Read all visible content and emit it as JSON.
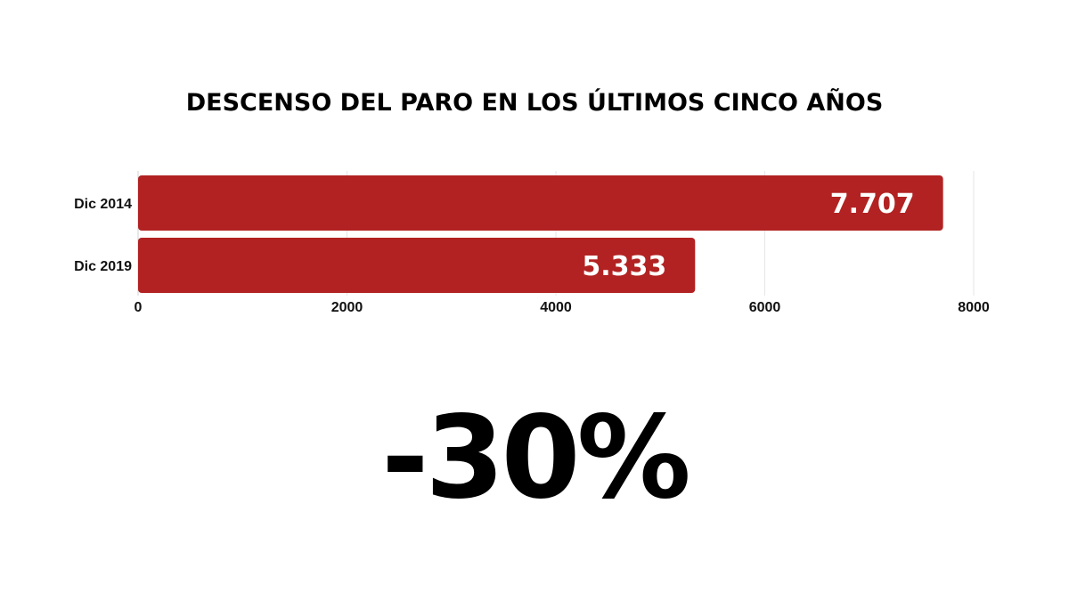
{
  "chart_data": {
    "type": "bar",
    "orientation": "horizontal",
    "title": "DESCENSO DEL PARO EN LOS ÚLTIMOS CINCO AÑOS",
    "categories": [
      "Dic 2014",
      "Dic 2019"
    ],
    "values": [
      7707,
      5333
    ],
    "data_labels": [
      "7.707",
      "5.333"
    ],
    "xlim": [
      0,
      8000
    ],
    "xticks": [
      "0",
      "2000",
      "4000",
      "6000",
      "8000"
    ],
    "grid": true,
    "bar_color": "#b22222"
  },
  "highlight": {
    "value": "-30%"
  }
}
